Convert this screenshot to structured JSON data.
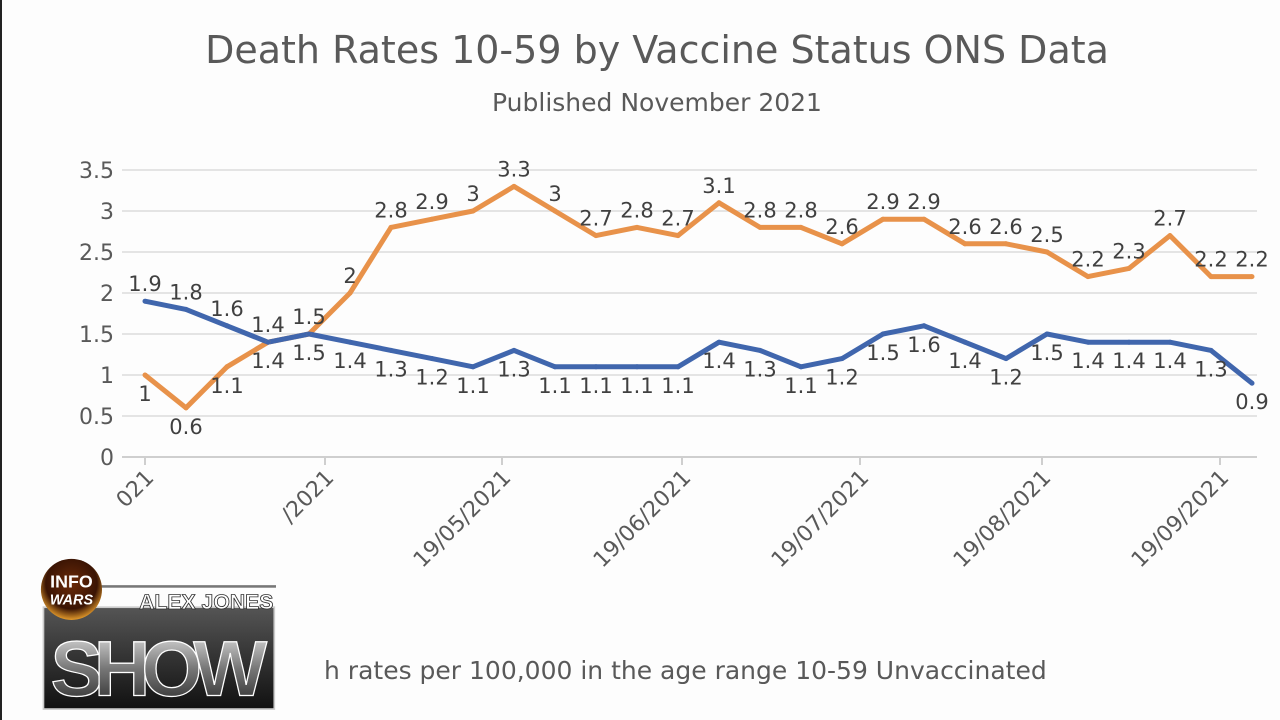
{
  "chart_data": {
    "type": "line",
    "title": "Death Rates 10-59  by Vaccine Status ONS Data",
    "subtitle": "Published November 2021",
    "ylim": [
      0,
      3.5
    ],
    "yticks": [
      "0",
      "0.5",
      "1",
      "1.5",
      "2",
      "2.5",
      "3",
      "3.5"
    ],
    "xtick_labels": [
      "021",
      "/2021",
      "19/05/2021",
      "19/06/2021",
      "19/07/2021",
      "19/08/2021",
      "19/09/2021"
    ],
    "grid": true,
    "legend_text": "h rates per 100,000 in the age range 10-59 Unvaccinated",
    "legend_placement": "bottom",
    "series": [
      {
        "color": "#e8924a",
        "values": [
          1,
          0.6,
          1.1,
          1.4,
          1.5,
          2,
          2.8,
          2.9,
          3,
          3.3,
          3,
          2.7,
          2.8,
          2.7,
          3.1,
          2.8,
          2.8,
          2.6,
          2.9,
          2.9,
          2.6,
          2.6,
          2.5,
          2.2,
          2.3,
          2.7,
          2.2,
          2.2
        ]
      },
      {
        "color": "#4066ad",
        "values": [
          1.9,
          1.8,
          1.6,
          1.4,
          1.5,
          1.4,
          1.3,
          1.2,
          1.1,
          1.3,
          1.1,
          1.1,
          1.1,
          1.1,
          1.4,
          1.3,
          1.1,
          1.2,
          1.5,
          1.6,
          1.4,
          1.2,
          1.5,
          1.4,
          1.4,
          1.4,
          1.3,
          0.9
        ]
      }
    ]
  },
  "logo": {
    "top": "INFO",
    "bottom": "WARS",
    "name": "ALEX JONES",
    "show": "SHOW",
    "brand_color": "#d9861f"
  }
}
